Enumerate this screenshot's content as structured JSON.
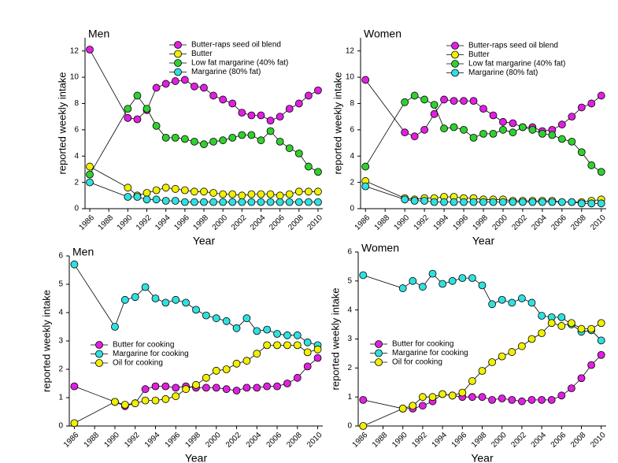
{
  "chart_data": [
    {
      "type": "line",
      "title": "Men",
      "xlabel": "Year",
      "ylabel": "reported weekly intake",
      "x": [
        1986,
        1990,
        1991,
        1992,
        1993,
        1994,
        1995,
        1996,
        1997,
        1998,
        1999,
        2000,
        2001,
        2002,
        2003,
        2004,
        2005,
        2006,
        2007,
        2008,
        2009,
        2010
      ],
      "xlim": [
        1985.5,
        2010.5
      ],
      "xticks": [
        1986,
        1988,
        1990,
        1992,
        1994,
        1996,
        1998,
        2000,
        2002,
        2004,
        2006,
        2008,
        2010
      ],
      "ylim": [
        0,
        13
      ],
      "yticks": [
        0,
        2,
        4,
        6,
        8,
        10,
        12
      ],
      "series": [
        {
          "name": "Butter-raps seed oil  blend",
          "color": "#e020e0",
          "values": [
            12.1,
            6.9,
            6.8,
            7.5,
            9.2,
            9.5,
            9.7,
            9.8,
            9.3,
            9.2,
            8.6,
            8.3,
            8.0,
            7.3,
            7.1,
            7.1,
            6.7,
            7.0,
            7.6,
            8.0,
            8.6,
            9.0
          ]
        },
        {
          "name": "Butter",
          "color": "#f0f000",
          "values": [
            3.2,
            1.6,
            1.0,
            1.2,
            1.4,
            1.6,
            1.5,
            1.4,
            1.3,
            1.3,
            1.2,
            1.1,
            1.1,
            1.0,
            1.1,
            1.1,
            1.1,
            1.0,
            1.1,
            1.3,
            1.3,
            1.3
          ]
        },
        {
          "name": "Low fat margarine (40% fat)",
          "color": "#30d030",
          "values": [
            2.6,
            7.6,
            8.6,
            7.6,
            6.3,
            5.4,
            5.4,
            5.3,
            5.1,
            4.9,
            5.1,
            5.2,
            5.4,
            5.6,
            5.6,
            5.2,
            5.9,
            5.1,
            4.6,
            4.2,
            3.2,
            2.8
          ]
        },
        {
          "name": "Margarine (80% fat)",
          "color": "#30e0e0",
          "values": [
            2.0,
            0.9,
            0.9,
            0.7,
            0.7,
            0.6,
            0.6,
            0.5,
            0.5,
            0.5,
            0.5,
            0.5,
            0.5,
            0.5,
            0.5,
            0.5,
            0.5,
            0.5,
            0.5,
            0.5,
            0.5,
            0.5
          ]
        }
      ]
    },
    {
      "type": "line",
      "title": "Women",
      "xlabel": "Year",
      "ylabel": "reported weekly intake",
      "x": [
        1986,
        1990,
        1991,
        1992,
        1993,
        1994,
        1995,
        1996,
        1997,
        1998,
        1999,
        2000,
        2001,
        2002,
        2003,
        2004,
        2005,
        2006,
        2007,
        2008,
        2009,
        2010
      ],
      "xlim": [
        1985.5,
        2010.5
      ],
      "xticks": [
        1986,
        1988,
        1990,
        1992,
        1994,
        1996,
        1998,
        2000,
        2002,
        2004,
        2006,
        2008,
        2010
      ],
      "ylim": [
        0,
        13
      ],
      "yticks": [
        0,
        2,
        4,
        6,
        8,
        10,
        12
      ],
      "series": [
        {
          "name": "Butter-raps seed oil blend",
          "color": "#e020e0",
          "values": [
            9.8,
            5.8,
            5.5,
            6.0,
            7.2,
            8.3,
            8.2,
            8.2,
            8.2,
            7.6,
            7.1,
            6.6,
            6.5,
            6.2,
            6.2,
            5.9,
            6.0,
            6.4,
            7.0,
            7.7,
            8.0,
            8.6
          ]
        },
        {
          "name": "Butter",
          "color": "#f0f000",
          "values": [
            2.1,
            0.8,
            0.7,
            0.8,
            0.8,
            0.9,
            0.9,
            0.8,
            0.8,
            0.7,
            0.7,
            0.7,
            0.6,
            0.6,
            0.6,
            0.6,
            0.6,
            0.5,
            0.5,
            0.5,
            0.6,
            0.7
          ]
        },
        {
          "name": "Low fat margarine (40% fat)",
          "color": "#30d030",
          "values": [
            3.2,
            8.1,
            8.6,
            8.3,
            7.9,
            6.1,
            6.2,
            6.0,
            5.4,
            5.7,
            5.7,
            6.0,
            5.8,
            6.2,
            6.0,
            5.7,
            5.6,
            5.3,
            5.1,
            4.3,
            3.3,
            2.8
          ]
        },
        {
          "name": "Margarine (80% fat)",
          "color": "#30e0e0",
          "values": [
            1.7,
            0.7,
            0.6,
            0.6,
            0.5,
            0.5,
            0.5,
            0.5,
            0.5,
            0.5,
            0.5,
            0.5,
            0.5,
            0.5,
            0.5,
            0.5,
            0.5,
            0.5,
            0.5,
            0.4,
            0.4,
            0.4
          ]
        }
      ]
    },
    {
      "type": "line",
      "title": "Men",
      "xlabel": "Year",
      "ylabel": "reported weekly intake",
      "x": [
        1986,
        1990,
        1991,
        1992,
        1993,
        1994,
        1995,
        1996,
        1997,
        1998,
        1999,
        2000,
        2001,
        2002,
        2003,
        2004,
        2005,
        2006,
        2007,
        2008,
        2009,
        2010
      ],
      "xlim": [
        1985.5,
        2010.5
      ],
      "xticks": [
        1986,
        1988,
        1990,
        1992,
        1994,
        1996,
        1998,
        2000,
        2002,
        2004,
        2006,
        2008,
        2010
      ],
      "ylim": [
        0,
        6
      ],
      "yticks": [
        0,
        1,
        2,
        3,
        4,
        5,
        6
      ],
      "series": [
        {
          "name": "Butter for cooking",
          "color": "#e020e0",
          "values": [
            1.4,
            0.85,
            0.7,
            0.8,
            1.3,
            1.4,
            1.4,
            1.35,
            1.4,
            1.35,
            1.35,
            1.35,
            1.3,
            1.25,
            1.35,
            1.35,
            1.4,
            1.4,
            1.5,
            1.7,
            2.1,
            2.4
          ]
        },
        {
          "name": "Margarine for cooking",
          "color": "#30e0e0",
          "values": [
            5.7,
            3.5,
            4.45,
            4.55,
            4.9,
            4.5,
            4.35,
            4.45,
            4.35,
            4.1,
            3.9,
            3.8,
            3.7,
            3.45,
            3.8,
            3.35,
            3.4,
            3.25,
            3.2,
            3.2,
            2.95,
            2.85
          ]
        },
        {
          "name": "Oil for cooking",
          "color": "#f0f000",
          "values": [
            0.1,
            0.85,
            0.75,
            0.8,
            0.9,
            0.9,
            0.95,
            1.05,
            1.3,
            1.45,
            1.7,
            1.95,
            2.0,
            2.2,
            2.3,
            2.55,
            2.85,
            2.85,
            2.85,
            2.85,
            2.6,
            2.7
          ]
        }
      ]
    },
    {
      "type": "line",
      "title": "Women",
      "xlabel": "Year",
      "ylabel": "reported weekly intake",
      "x": [
        1986,
        1990,
        1991,
        1992,
        1993,
        1994,
        1995,
        1996,
        1997,
        1998,
        1999,
        2000,
        2001,
        2002,
        2003,
        2004,
        2005,
        2006,
        2007,
        2008,
        2009,
        2010
      ],
      "xlim": [
        1985.5,
        2010.5
      ],
      "xticks": [
        1986,
        1988,
        1990,
        1992,
        1994,
        1996,
        1998,
        2000,
        2002,
        2004,
        2006,
        2008,
        2010
      ],
      "ylim": [
        0,
        6
      ],
      "yticks": [
        0,
        1,
        2,
        3,
        4,
        5,
        6
      ],
      "series": [
        {
          "name": "Butter for cooking",
          "color": "#e020e0",
          "values": [
            0.9,
            0.6,
            0.6,
            0.7,
            0.85,
            1.1,
            1.05,
            1.0,
            1.0,
            1.0,
            0.9,
            0.95,
            0.9,
            0.85,
            0.9,
            0.9,
            0.9,
            1.05,
            1.3,
            1.65,
            2.1,
            2.45
          ]
        },
        {
          "name": "Margarine for cooking",
          "color": "#30e0e0",
          "values": [
            5.2,
            4.75,
            5.0,
            4.8,
            5.25,
            4.9,
            5.0,
            5.1,
            5.1,
            4.85,
            4.2,
            4.35,
            4.25,
            4.4,
            4.25,
            3.8,
            3.75,
            3.75,
            3.5,
            3.25,
            3.3,
            2.95
          ]
        },
        {
          "name": "Oil for cooking",
          "color": "#f0f000",
          "values": [
            0.0,
            0.6,
            0.7,
            1.0,
            1.0,
            1.1,
            1.05,
            1.15,
            1.55,
            1.9,
            2.2,
            2.4,
            2.55,
            2.75,
            3.0,
            3.2,
            3.55,
            3.45,
            3.55,
            3.35,
            3.35,
            3.55
          ]
        }
      ]
    }
  ]
}
